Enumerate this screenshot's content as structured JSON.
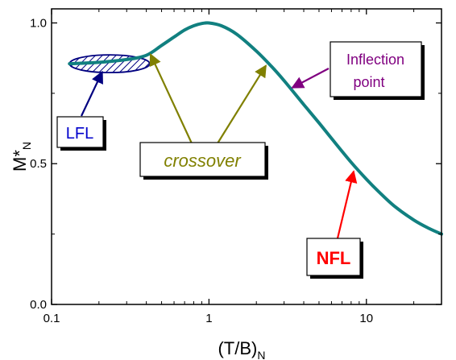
{
  "chart_data": {
    "type": "line",
    "xlabel": "(T/B)",
    "xlabel_subscript": "N",
    "ylabel": "M*",
    "ylabel_subscript": "N",
    "xscale": "log",
    "xlim": [
      0.1,
      30
    ],
    "ylim": [
      0.0,
      1.05
    ],
    "x_tick_labels": [
      "0.1",
      "1",
      "10"
    ],
    "x_tick_values": [
      0.1,
      1,
      10
    ],
    "y_tick_labels": [
      "0.0",
      "0.5",
      "1.0"
    ],
    "y_tick_values": [
      0.0,
      0.5,
      1.0
    ],
    "grid": false,
    "series": [
      {
        "color": "#118080",
        "x": [
          0.13,
          0.2,
          0.3,
          0.4,
          0.5,
          0.6,
          0.7,
          0.8,
          0.9,
          1.0,
          1.2,
          1.5,
          2.0,
          2.5,
          3.0,
          4.0,
          5.0,
          6.0,
          8.0,
          10.0,
          12.0,
          15.0,
          20.0,
          25.0,
          30.0
        ],
        "y": [
          0.855,
          0.86,
          0.87,
          0.885,
          0.92,
          0.95,
          0.975,
          0.99,
          0.998,
          1.0,
          0.99,
          0.96,
          0.9,
          0.845,
          0.795,
          0.71,
          0.645,
          0.59,
          0.505,
          0.445,
          0.4,
          0.35,
          0.3,
          0.27,
          0.25
        ]
      }
    ],
    "annotations": [
      {
        "text": "LFL",
        "color": "#0000cc",
        "bold": false,
        "target": [
          0.22,
          0.855
        ]
      },
      {
        "text": "crossover",
        "color": "#808000",
        "italic": true,
        "targets": [
          [
            0.43,
            0.9
          ],
          [
            2.3,
            0.86
          ]
        ]
      },
      {
        "text": "Inflection point",
        "lines": [
          "Inflection",
          "point"
        ],
        "color": "#800080",
        "target": [
          3.3,
          0.77
        ]
      },
      {
        "text": "NFL",
        "color": "#ff0000",
        "bold": true,
        "target": [
          8.5,
          0.49
        ]
      }
    ],
    "highlight": {
      "shape": "hatched-ellipse",
      "color": "#000080",
      "x_range": [
        0.13,
        0.42
      ],
      "y_center": 0.855
    }
  }
}
